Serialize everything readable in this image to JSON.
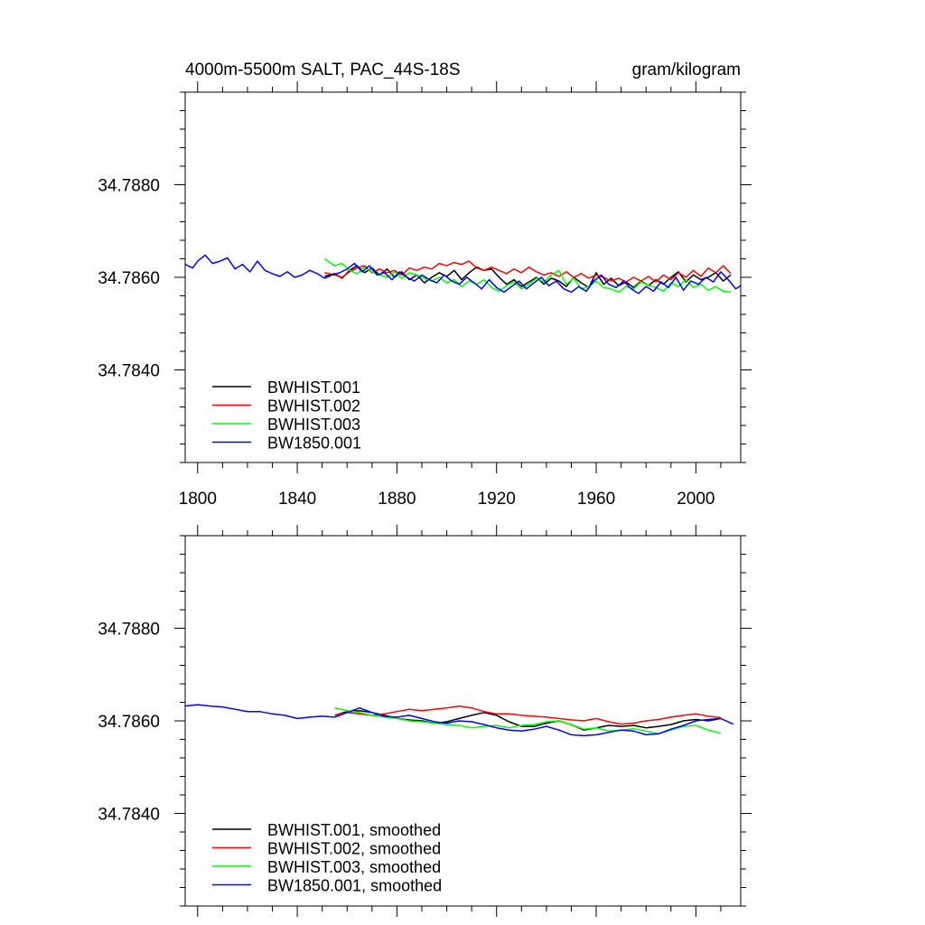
{
  "chart_data": [
    {
      "type": "line",
      "title": "4000m-5500m SALT, PAC_44S-18S",
      "units": "gram/kilogram",
      "xlabel": "",
      "ylabel": "",
      "xlim": [
        1795,
        2018
      ],
      "ylim": [
        34.782,
        34.79
      ],
      "xticks": [
        1800,
        1840,
        1880,
        1920,
        1960,
        2000
      ],
      "xtick_labels": [
        "1800",
        "1840",
        "1880",
        "1920",
        "1960",
        "2000"
      ],
      "yticks": [
        34.784,
        34.786,
        34.788
      ],
      "ytick_labels": [
        "34.7840",
        "34.7860",
        "34.7880"
      ],
      "legend_position": "bottom-left",
      "series": [
        {
          "name": "BWHIST.001",
          "color": "#000000",
          "x": [
            1851,
            1855,
            1858,
            1861,
            1864,
            1867,
            1870,
            1873,
            1876,
            1879,
            1882,
            1885,
            1888,
            1891,
            1894,
            1897,
            1900,
            1903,
            1906,
            1909,
            1912,
            1915,
            1918,
            1921,
            1924,
            1927,
            1930,
            1933,
            1936,
            1939,
            1942,
            1945,
            1948,
            1951,
            1954,
            1957,
            1960,
            1963,
            1966,
            1969,
            1972,
            1975,
            1978,
            1981,
            1984,
            1987,
            1990,
            1993,
            1996,
            1999,
            2002,
            2005,
            2008,
            2011,
            2014
          ],
          "y": [
            34.78602,
            34.78608,
            34.78598,
            34.78615,
            34.78625,
            34.7861,
            34.7862,
            34.78605,
            34.78618,
            34.786,
            34.78612,
            34.78595,
            34.78605,
            34.78588,
            34.786,
            34.7861,
            34.78602,
            34.78615,
            34.78595,
            34.7861,
            34.78622,
            34.78615,
            34.78618,
            34.786,
            34.78585,
            34.78595,
            34.7858,
            34.7859,
            34.786,
            34.78585,
            34.78598,
            34.78592,
            34.7858,
            34.786,
            34.78588,
            34.78578,
            34.7861,
            34.78585,
            34.78598,
            34.78582,
            34.7859,
            34.78578,
            34.78592,
            34.78582,
            34.78595,
            34.78585,
            34.786,
            34.78612,
            34.7859,
            34.78605,
            34.78595,
            34.786,
            34.7861,
            34.78592,
            34.78605
          ]
        },
        {
          "name": "BWHIST.002",
          "color": "#ff0000",
          "x": [
            1851,
            1855,
            1858,
            1861,
            1864,
            1867,
            1870,
            1873,
            1876,
            1879,
            1882,
            1885,
            1888,
            1891,
            1894,
            1897,
            1900,
            1903,
            1906,
            1909,
            1912,
            1915,
            1918,
            1921,
            1924,
            1927,
            1930,
            1933,
            1936,
            1939,
            1942,
            1945,
            1948,
            1951,
            1954,
            1957,
            1960,
            1963,
            1966,
            1969,
            1972,
            1975,
            1978,
            1981,
            1984,
            1987,
            1990,
            1993,
            1996,
            1999,
            2002,
            2005,
            2008,
            2011,
            2014
          ],
          "y": [
            34.7861,
            34.78605,
            34.786,
            34.78612,
            34.7862,
            34.78625,
            34.7861,
            34.78618,
            34.7861,
            34.78615,
            34.78605,
            34.7862,
            34.78615,
            34.78622,
            34.78618,
            34.7863,
            34.78625,
            34.78632,
            34.78628,
            34.78635,
            34.7862,
            34.78615,
            34.78622,
            34.78615,
            34.78608,
            34.78618,
            34.7861,
            34.78622,
            34.78612,
            34.78605,
            34.7861,
            34.78602,
            34.78612,
            34.786,
            34.78608,
            34.78598,
            34.78605,
            34.786,
            34.78592,
            34.78598,
            34.7859,
            34.786,
            34.78592,
            34.78602,
            34.7859,
            34.78605,
            34.78595,
            34.7861,
            34.786,
            34.78615,
            34.78602,
            34.7862,
            34.7861,
            34.78625,
            34.78608
          ]
        },
        {
          "name": "BWHIST.003",
          "color": "#00ff00",
          "x": [
            1851,
            1855,
            1858,
            1861,
            1864,
            1867,
            1870,
            1873,
            1876,
            1879,
            1882,
            1885,
            1888,
            1891,
            1894,
            1897,
            1900,
            1903,
            1906,
            1909,
            1912,
            1915,
            1918,
            1921,
            1924,
            1927,
            1930,
            1933,
            1936,
            1939,
            1942,
            1945,
            1948,
            1951,
            1954,
            1957,
            1960,
            1963,
            1966,
            1969,
            1972,
            1975,
            1978,
            1981,
            1984,
            1987,
            1990,
            1993,
            1996,
            1999,
            2002,
            2005,
            2008,
            2011,
            2014
          ],
          "y": [
            34.7864,
            34.78625,
            34.7863,
            34.78615,
            34.78608,
            34.78622,
            34.78612,
            34.78605,
            34.786,
            34.78612,
            34.78598,
            34.7861,
            34.78605,
            34.78598,
            34.78592,
            34.786,
            34.78588,
            34.78595,
            34.7858,
            34.78592,
            34.78585,
            34.78595,
            34.78578,
            34.7857,
            34.78582,
            34.7859,
            34.78575,
            34.78585,
            34.78598,
            34.7859,
            34.78605,
            34.78615,
            34.78585,
            34.78598,
            34.78575,
            34.7858,
            34.78592,
            34.78578,
            34.78575,
            34.78568,
            34.7858,
            34.78575,
            34.7859,
            34.78582,
            34.78578,
            34.7857,
            34.78588,
            34.7858,
            34.78595,
            34.78578,
            34.78585,
            34.78572,
            34.7858,
            34.7857,
            34.78568
          ]
        },
        {
          "name": "BW1850.001",
          "color": "#0000ff",
          "x": [
            1795,
            1798,
            1800,
            1803,
            1806,
            1809,
            1812,
            1815,
            1818,
            1821,
            1824,
            1827,
            1830,
            1833,
            1836,
            1839,
            1842,
            1845,
            1848,
            1851,
            1854,
            1857,
            1860,
            1863,
            1866,
            1869,
            1872,
            1875,
            1878,
            1881,
            1884,
            1887,
            1890,
            1893,
            1896,
            1899,
            1902,
            1905,
            1908,
            1911,
            1914,
            1917,
            1920,
            1923,
            1926,
            1929,
            1932,
            1935,
            1938,
            1941,
            1944,
            1947,
            1950,
            1953,
            1956,
            1959,
            1962,
            1965,
            1968,
            1971,
            1974,
            1977,
            1980,
            1983,
            1986,
            1989,
            1992,
            1995,
            1998,
            2001,
            2004,
            2007,
            2010,
            2013,
            2016,
            2018
          ],
          "y": [
            34.78628,
            34.7862,
            34.78635,
            34.78648,
            34.7863,
            34.78635,
            34.78642,
            34.78618,
            34.78628,
            34.78612,
            34.78635,
            34.78615,
            34.78608,
            34.78602,
            34.78612,
            34.786,
            34.78605,
            34.78615,
            34.78608,
            34.78598,
            34.78605,
            34.7861,
            34.78618,
            34.7863,
            34.78612,
            34.78625,
            34.78605,
            34.7861,
            34.78595,
            34.78612,
            34.786,
            34.78592,
            34.78605,
            34.78595,
            34.78588,
            34.78605,
            34.78592,
            34.78585,
            34.786,
            34.78588,
            34.78575,
            34.78595,
            34.78578,
            34.78568,
            34.7858,
            34.78592,
            34.78575,
            34.78588,
            34.786,
            34.78582,
            34.78592,
            34.78575,
            34.78568,
            34.7858,
            34.7857,
            34.78592,
            34.78605,
            34.78585,
            34.78578,
            34.78592,
            34.78575,
            34.78565,
            34.7858,
            34.7857,
            34.7859,
            34.78578,
            34.786,
            34.78572,
            34.78592,
            34.78585,
            34.786,
            34.7859,
            34.78612,
            34.78595,
            34.78575,
            34.78582
          ]
        }
      ]
    },
    {
      "type": "line",
      "title": "",
      "xlabel": "",
      "ylabel": "",
      "xlim": [
        1795,
        2018
      ],
      "ylim": [
        34.782,
        34.79
      ],
      "xticks": [
        1800,
        1840,
        1880,
        1920,
        1960,
        2000
      ],
      "xtick_labels": [],
      "yticks": [
        34.784,
        34.786,
        34.788
      ],
      "ytick_labels": [
        "34.7840",
        "34.7860",
        "34.7880"
      ],
      "legend_position": "bottom-left",
      "series": [
        {
          "name": "BWHIST.001, smoothed",
          "color": "#000000",
          "x": [
            1855,
            1860,
            1865,
            1870,
            1875,
            1880,
            1885,
            1890,
            1895,
            1900,
            1905,
            1910,
            1915,
            1920,
            1925,
            1930,
            1935,
            1940,
            1945,
            1950,
            1955,
            1960,
            1965,
            1970,
            1975,
            1980,
            1985,
            1990,
            1995,
            2000,
            2005,
            2010
          ],
          "y": [
            34.78612,
            34.7862,
            34.78622,
            34.78618,
            34.78612,
            34.78605,
            34.78602,
            34.786,
            34.78595,
            34.78598,
            34.78605,
            34.78612,
            34.78618,
            34.78612,
            34.78598,
            34.78588,
            34.78588,
            34.78595,
            34.786,
            34.78592,
            34.7858,
            34.78585,
            34.7859,
            34.78588,
            34.7859,
            34.78585,
            34.78588,
            34.78592,
            34.786,
            34.78603,
            34.786,
            34.78605
          ]
        },
        {
          "name": "BWHIST.002, smoothed",
          "color": "#ff0000",
          "x": [
            1855,
            1860,
            1865,
            1870,
            1875,
            1880,
            1885,
            1890,
            1895,
            1900,
            1905,
            1910,
            1915,
            1920,
            1925,
            1930,
            1935,
            1940,
            1945,
            1950,
            1955,
            1960,
            1965,
            1970,
            1975,
            1980,
            1985,
            1990,
            1995,
            2000,
            2005,
            2010
          ],
          "y": [
            34.78612,
            34.78618,
            34.78615,
            34.78612,
            34.78615,
            34.7862,
            34.78625,
            34.78622,
            34.78625,
            34.78628,
            34.78632,
            34.78628,
            34.7862,
            34.78615,
            34.78615,
            34.78612,
            34.7861,
            34.78608,
            34.78605,
            34.78602,
            34.786,
            34.78605,
            34.78598,
            34.78593,
            34.78595,
            34.786,
            34.78603,
            34.78608,
            34.78612,
            34.78615,
            34.7861,
            34.78607
          ]
        },
        {
          "name": "BWHIST.003, smoothed",
          "color": "#00ff00",
          "x": [
            1855,
            1860,
            1865,
            1870,
            1875,
            1880,
            1885,
            1890,
            1895,
            1900,
            1905,
            1910,
            1915,
            1920,
            1925,
            1930,
            1935,
            1940,
            1945,
            1950,
            1955,
            1960,
            1965,
            1970,
            1975,
            1980,
            1985,
            1990,
            1995,
            2000,
            2005,
            2010
          ],
          "y": [
            34.78628,
            34.78622,
            34.78618,
            34.78612,
            34.78608,
            34.78605,
            34.786,
            34.78598,
            34.78595,
            34.78592,
            34.7859,
            34.78585,
            34.78588,
            34.7859,
            34.78585,
            34.7859,
            34.78592,
            34.78598,
            34.786,
            34.78592,
            34.78582,
            34.78585,
            34.78578,
            34.7858,
            34.78583,
            34.78578,
            34.78572,
            34.7858,
            34.78588,
            34.7859,
            34.7858,
            34.78573
          ]
        },
        {
          "name": "BW1850.001, smoothed",
          "color": "#0000ff",
          "x": [
            1795,
            1800,
            1805,
            1810,
            1815,
            1820,
            1825,
            1830,
            1835,
            1840,
            1845,
            1850,
            1855,
            1860,
            1865,
            1870,
            1875,
            1880,
            1885,
            1890,
            1895,
            1900,
            1905,
            1910,
            1915,
            1920,
            1925,
            1930,
            1935,
            1940,
            1945,
            1950,
            1955,
            1960,
            1965,
            1970,
            1975,
            1980,
            1985,
            1990,
            1995,
            2000,
            2005,
            2010,
            2015
          ],
          "y": [
            34.78632,
            34.78635,
            34.78632,
            34.7863,
            34.78625,
            34.7862,
            34.7862,
            34.78615,
            34.78612,
            34.78605,
            34.78608,
            34.7861,
            34.78608,
            34.78618,
            34.78628,
            34.78618,
            34.7861,
            34.78608,
            34.78612,
            34.78605,
            34.78598,
            34.78595,
            34.786,
            34.78598,
            34.78592,
            34.78585,
            34.7858,
            34.78578,
            34.78582,
            34.78588,
            34.7858,
            34.7857,
            34.78568,
            34.7857,
            34.78575,
            34.7858,
            34.78578,
            34.7857,
            34.78572,
            34.78582,
            34.7859,
            34.786,
            34.78603,
            34.78605,
            34.78593
          ]
        }
      ]
    }
  ]
}
